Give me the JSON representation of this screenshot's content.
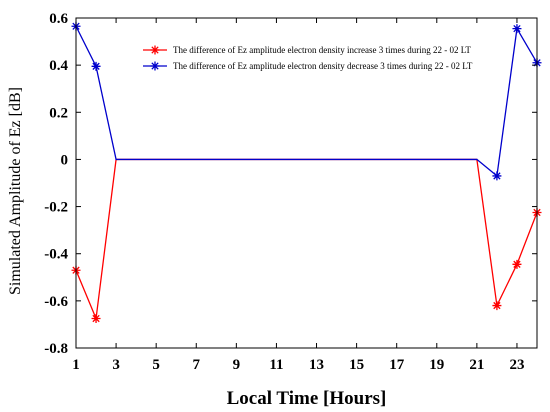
{
  "chart_data": {
    "type": "line",
    "title": "",
    "xlabel": "Local Time [Hours]",
    "ylabel": "Simulated Amplitude of Ez [dB]",
    "xlim": [
      1,
      24
    ],
    "ylim": [
      -0.8,
      0.6
    ],
    "xticks": [
      "1",
      "3",
      "5",
      "7",
      "9",
      "11",
      "13",
      "15",
      "17",
      "19",
      "21",
      "23"
    ],
    "yticks": [
      "0.6",
      "0.4",
      "0.2",
      "0",
      "-0.2",
      "-0.4",
      "-0.6",
      "-0.8"
    ],
    "legend_position": "top-right",
    "grid": false,
    "series": [
      {
        "name": "The difference of Ez amplitude electron density increase 3 times during 22 - 02 LT",
        "color": "#ff0000",
        "x": [
          1,
          2,
          3,
          21,
          22,
          23,
          24
        ],
        "y": [
          -0.47,
          -0.675,
          0,
          0,
          -0.62,
          -0.445,
          -0.225
        ],
        "marker_x": [
          1,
          2,
          22,
          23,
          24
        ]
      },
      {
        "name": "The difference of Ez amplitude electron density decrease 3 times during 22 - 02 LT",
        "color": "#0000cc",
        "x": [
          1,
          2,
          3,
          21,
          22,
          23,
          24
        ],
        "y": [
          0.565,
          0.395,
          0,
          0,
          -0.07,
          0.555,
          0.41
        ],
        "marker_x": [
          1,
          2,
          22,
          23,
          24
        ]
      }
    ]
  }
}
